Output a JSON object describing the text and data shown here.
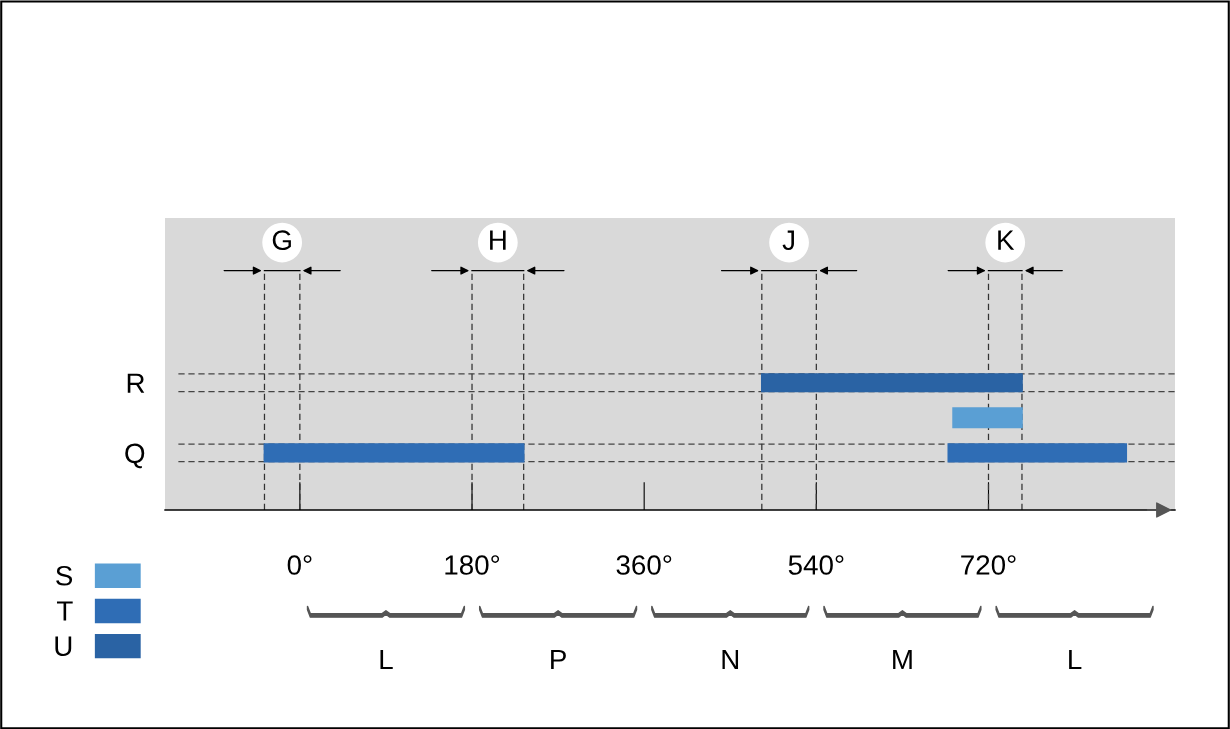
{
  "chart_data": {
    "type": "bar",
    "orientation": "horizontal",
    "categories": [
      "R",
      null,
      "Q"
    ],
    "series": [
      {
        "name": "S",
        "color": "#5a9fd4",
        "values": [
          null,
          72,
          null
        ],
        "base": [
          null,
          683,
          null
        ]
      },
      {
        "name": "T",
        "color": "#2f6db5",
        "values": [
          null,
          null,
          271
        ],
        "base": [
          null,
          null,
          -37
        ]
      },
      {
        "name": "U",
        "color": "#2a63a4",
        "values": [
          272,
          null,
          null
        ],
        "base": [
          483,
          null,
          null
        ]
      },
      {
        "color": "#2f6db5",
        "values": [
          null,
          null,
          186
        ],
        "base": [
          null,
          null,
          678
        ]
      }
    ],
    "xlim": [
      -141,
      915
    ],
    "xticks": [
      {
        "value": 0,
        "label": "0°"
      },
      {
        "value": 180,
        "label": "180°"
      },
      {
        "value": 360,
        "label": "360°"
      },
      {
        "value": 540,
        "label": "540°"
      },
      {
        "value": 720,
        "label": "720°"
      }
    ],
    "ref_lines": [
      {
        "axis": "x",
        "value": -37,
        "label": "G",
        "line_style": "dashed"
      },
      {
        "axis": "x",
        "value": 0,
        "line_style": "dashed"
      },
      {
        "axis": "x",
        "value": 180,
        "label": "H",
        "line_style": "dashed"
      },
      {
        "axis": "x",
        "value": 234,
        "line_style": "dashed"
      },
      {
        "axis": "x",
        "value": 483,
        "label": "J",
        "line_style": "dashed"
      },
      {
        "axis": "x",
        "value": 540,
        "line_style": "dashed"
      },
      {
        "axis": "x",
        "value": 720,
        "label": "K",
        "line_style": "dashed"
      },
      {
        "axis": "x",
        "value": 755,
        "line_style": "dashed"
      }
    ],
    "annotations": [
      "L",
      "P",
      "N",
      "M",
      "L"
    ],
    "legend": "bottom left",
    "grid": "y"
  }
}
